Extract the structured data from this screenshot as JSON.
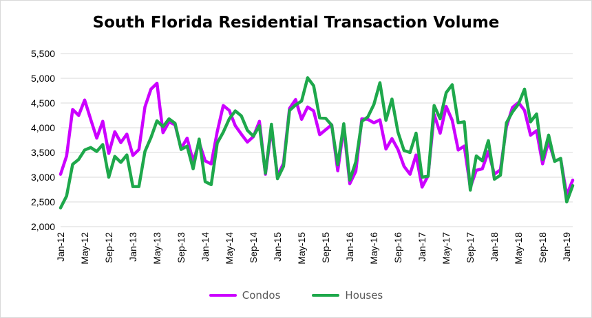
{
  "chart_data": {
    "type": "line",
    "title": "South Florida Residential Transaction Volume",
    "xlabel": "",
    "ylabel": "",
    "ylim": [
      2000,
      5500
    ],
    "yticks": [
      2000,
      2500,
      3000,
      3500,
      4000,
      4500,
      5000,
      5500
    ],
    "ytick_labels": [
      "2,000",
      "2,500",
      "3,000",
      "3,500",
      "4,000",
      "4,500",
      "5,000",
      "5,500"
    ],
    "x": [
      "Jan-12",
      "Feb-12",
      "Mar-12",
      "Apr-12",
      "May-12",
      "Jun-12",
      "Jul-12",
      "Aug-12",
      "Sep-12",
      "Oct-12",
      "Nov-12",
      "Dec-12",
      "Jan-13",
      "Feb-13",
      "Mar-13",
      "Apr-13",
      "May-13",
      "Jun-13",
      "Jul-13",
      "Aug-13",
      "Sep-13",
      "Oct-13",
      "Nov-13",
      "Dec-13",
      "Jan-14",
      "Feb-14",
      "Mar-14",
      "Apr-14",
      "May-14",
      "Jun-14",
      "Jul-14",
      "Aug-14",
      "Sep-14",
      "Oct-14",
      "Nov-14",
      "Dec-14",
      "Jan-15",
      "Feb-15",
      "Mar-15",
      "Apr-15",
      "May-15",
      "Jun-15",
      "Jul-15",
      "Aug-15",
      "Sep-15",
      "Oct-15",
      "Nov-15",
      "Dec-15",
      "Jan-16",
      "Feb-16",
      "Mar-16",
      "Apr-16",
      "May-16",
      "Jun-16",
      "Jul-16",
      "Aug-16",
      "Sep-16",
      "Oct-16",
      "Nov-16",
      "Dec-16",
      "Jan-17",
      "Feb-17",
      "Mar-17",
      "Apr-17",
      "May-17",
      "Jun-17",
      "Jul-17",
      "Aug-17",
      "Sep-17",
      "Oct-17",
      "Nov-17",
      "Dec-17",
      "Jan-18",
      "Feb-18",
      "Mar-18",
      "Apr-18",
      "May-18",
      "Jun-18",
      "Jul-18",
      "Aug-18",
      "Sep-18",
      "Oct-18",
      "Nov-18",
      "Dec-18",
      "Jan-19",
      "Feb-19"
    ],
    "xtick_labels": [
      "Jan-12",
      "May-12",
      "Sep-12",
      "Jan-13",
      "May-13",
      "Sep-13",
      "Jan-14",
      "May-14",
      "Sep-14",
      "Jan-15",
      "May-15",
      "Sep-15",
      "Jan-16",
      "May-16",
      "Sep-16",
      "Jan-17",
      "May-17",
      "Sep-17",
      "Jan-18",
      "May-18",
      "Sep-18",
      "Jan-19"
    ],
    "legend_position": "bottom",
    "grid": "horizontal",
    "series": [
      {
        "name": "Condos",
        "color": "#cc00ff",
        "values": [
          3060,
          3430,
          4370,
          4250,
          4560,
          4170,
          3790,
          4130,
          3480,
          3920,
          3700,
          3870,
          3440,
          3560,
          4420,
          4780,
          4900,
          3900,
          4120,
          4060,
          3580,
          3790,
          3320,
          3700,
          3330,
          3270,
          3920,
          4450,
          4350,
          4040,
          3870,
          3710,
          3820,
          4130,
          3060,
          3990,
          3020,
          3280,
          4390,
          4570,
          4170,
          4420,
          4340,
          3860,
          3960,
          4060,
          3130,
          4010,
          2870,
          3120,
          4180,
          4170,
          4100,
          4160,
          3570,
          3780,
          3560,
          3220,
          3060,
          3450,
          2800,
          3030,
          4270,
          3890,
          4430,
          4150,
          3550,
          3630,
          2790,
          3140,
          3170,
          3520,
          3060,
          3150,
          4020,
          4410,
          4510,
          4350,
          3850,
          3940,
          3270,
          3730,
          3330,
          3370,
          2640,
          2940
        ]
      },
      {
        "name": "Houses",
        "color": "#1ea84b",
        "values": [
          2380,
          2620,
          3260,
          3360,
          3550,
          3600,
          3520,
          3660,
          3000,
          3420,
          3300,
          3450,
          2810,
          2810,
          3520,
          3800,
          4140,
          4020,
          4180,
          4090,
          3560,
          3630,
          3170,
          3770,
          2910,
          2850,
          3690,
          3910,
          4180,
          4340,
          4240,
          3950,
          3830,
          4040,
          3080,
          4070,
          2970,
          3220,
          4350,
          4460,
          4540,
          5010,
          4850,
          4200,
          4190,
          4050,
          3250,
          4080,
          2940,
          3310,
          4130,
          4220,
          4470,
          4910,
          4150,
          4580,
          3910,
          3540,
          3500,
          3890,
          3000,
          3020,
          4450,
          4180,
          4710,
          4870,
          4100,
          4120,
          2740,
          3430,
          3330,
          3740,
          2960,
          3040,
          4100,
          4320,
          4480,
          4780,
          4120,
          4280,
          3360,
          3850,
          3320,
          3380,
          2500,
          2830
        ]
      }
    ]
  }
}
